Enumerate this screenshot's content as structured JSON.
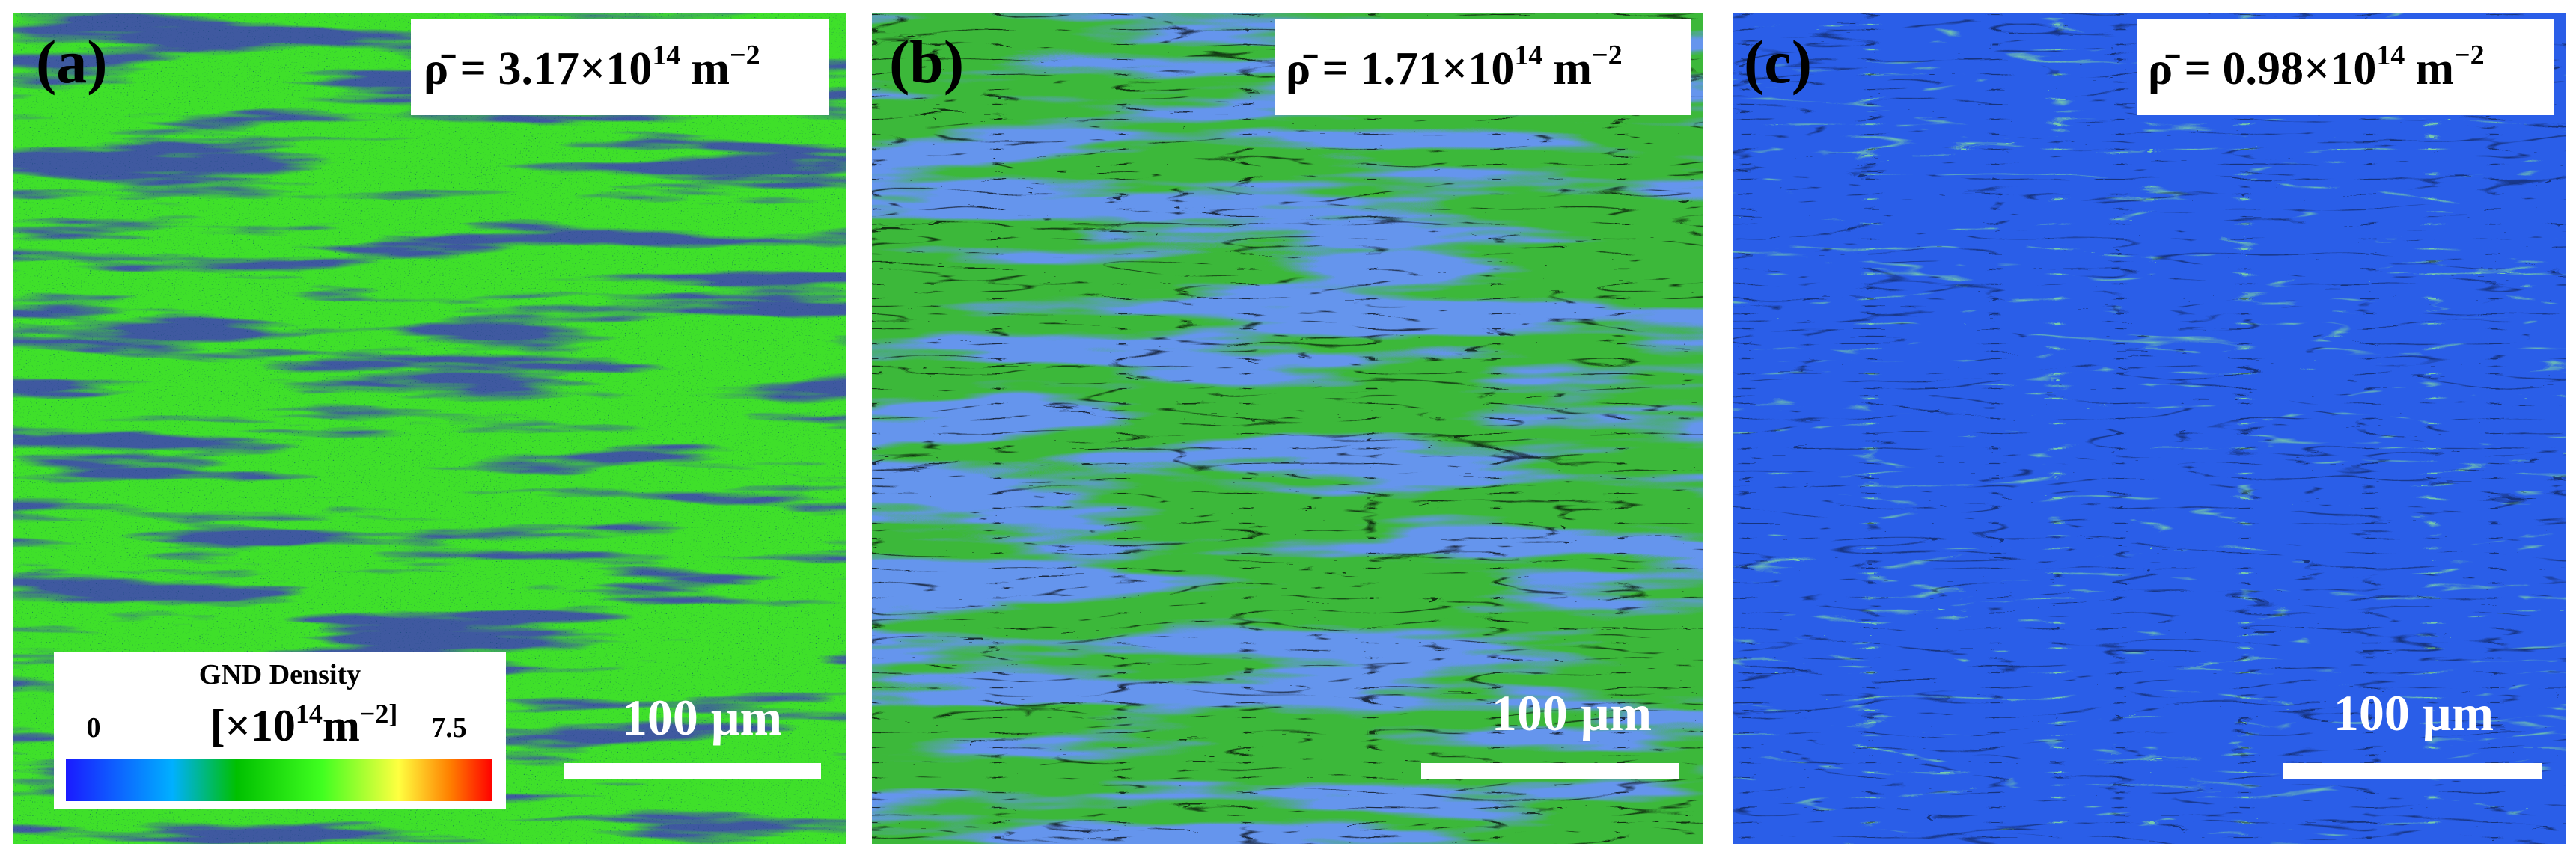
{
  "panels": [
    {
      "label": "(a)",
      "density": {
        "text": "ρ̄ = 3.17×10",
        "exponent": "14",
        "unit": "m",
        "unit_exponent": "−2"
      },
      "scale_bar": "100 μm"
    },
    {
      "label": "(b)",
      "density": {
        "text": "ρ̄ = 1.71×10",
        "exponent": "14",
        "unit": "m",
        "unit_exponent": "−2"
      },
      "scale_bar": "100 μm"
    },
    {
      "label": "(c)",
      "density": {
        "text": "ρ̄ = 0.98×10",
        "exponent": "14",
        "unit": "m",
        "unit_exponent": "−2"
      },
      "scale_bar": "100 μm"
    }
  ],
  "colorbar": {
    "title": "GND Density",
    "unit": "[×10",
    "unit_exponent": "14",
    "unit_rest": "m",
    "unit_rest_exponent": "−2]",
    "min": "0",
    "max": "7.5"
  }
}
